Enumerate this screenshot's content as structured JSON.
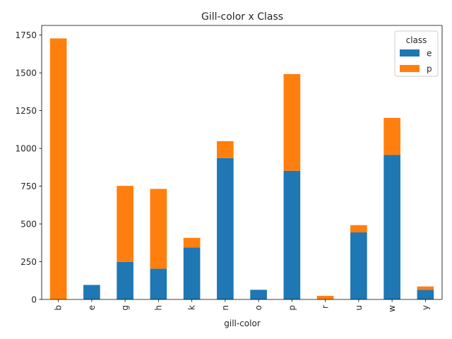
{
  "chart_data": {
    "type": "bar",
    "stacked": true,
    "title": "Gill-color x Class",
    "xlabel": "gill-color",
    "ylabel": "",
    "categories": [
      "b",
      "e",
      "g",
      "h",
      "k",
      "n",
      "o",
      "p",
      "r",
      "u",
      "w",
      "y"
    ],
    "series": [
      {
        "name": "e",
        "color": "#1f77b4",
        "values": [
          0,
          96,
          248,
          204,
          344,
          936,
          64,
          852,
          0,
          444,
          956,
          64
        ]
      },
      {
        "name": "p",
        "color": "#ff7f0e",
        "values": [
          1728,
          0,
          504,
          528,
          64,
          112,
          0,
          640,
          24,
          48,
          246,
          22
        ]
      }
    ],
    "ylim": [
      0,
      1814
    ],
    "yticks": [
      0,
      250,
      500,
      750,
      1000,
      1250,
      1500,
      1750
    ],
    "legend": {
      "title": "class",
      "placement": "top-right"
    },
    "grid": false
  }
}
